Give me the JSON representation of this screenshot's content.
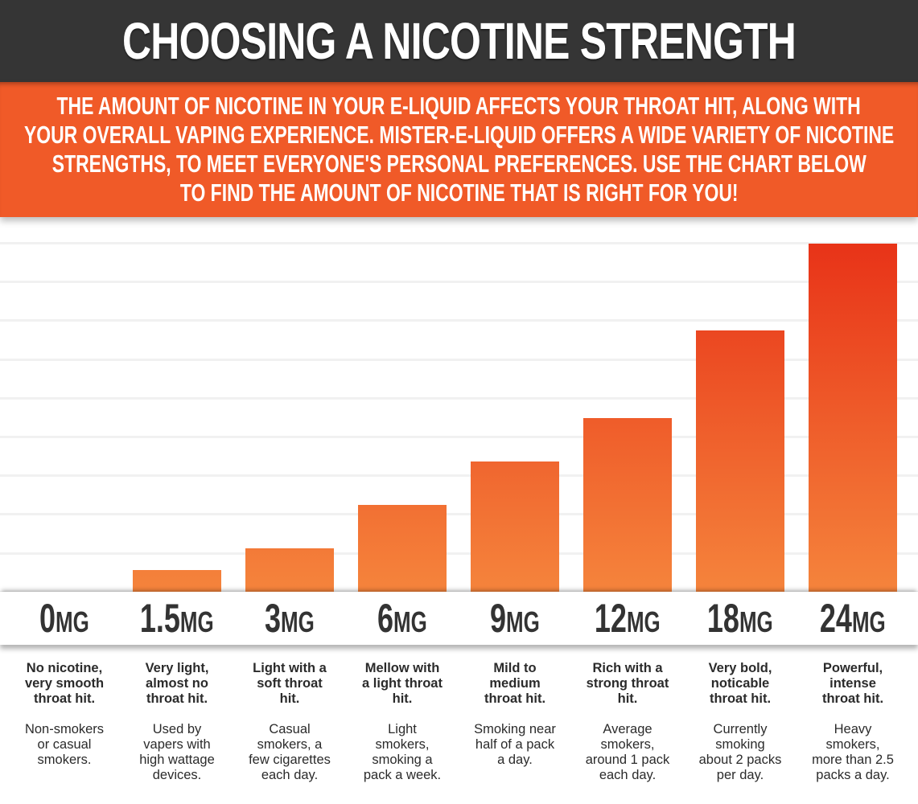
{
  "header": {
    "title": "CHOOSING A NICOTINE STRENGTH"
  },
  "banner": {
    "lines": [
      "THE AMOUNT OF NICOTINE IN YOUR E-LIQUID AFFECTS YOUR THROAT HIT, ALONG  WITH",
      "YOUR OVERALL VAPING EXPERIENCE. MISTER-E-LIQUID OFFERS A WIDE VARIETY OF NICOTINE",
      "STRENGTHS, TO MEET EVERYONE'S PERSONAL PREFERENCES. USE THE CHART BELOW",
      "TO FIND THE AMOUNT OF NICOTINE THAT IS RIGHT FOR YOU!"
    ]
  },
  "colors": {
    "header_bg": "#353535",
    "banner_bg": "#f05a28",
    "bar_bottom": "#f5843c",
    "bar_top_max": "#e83318",
    "label_text": "#333333"
  },
  "chart_data": {
    "type": "bar",
    "title": "CHOOSING A NICOTINE STRENGTH",
    "xlabel": "",
    "ylabel": "",
    "categories": [
      "0MG",
      "1.5MG",
      "3MG",
      "6MG",
      "9MG",
      "12MG",
      "18MG",
      "24MG"
    ],
    "values": [
      0,
      1.5,
      3,
      6,
      9,
      12,
      18,
      24
    ],
    "ylim": [
      0,
      24
    ],
    "grid": true,
    "legend": "none",
    "y_axis_ticks_visible": false
  },
  "columns": [
    {
      "num": "0",
      "unit": "MG",
      "headline": [
        "No nicotine,",
        "very smooth",
        "throat hit."
      ],
      "detail": [
        "Non-smokers",
        "or casual",
        "smokers."
      ]
    },
    {
      "num": "1.5",
      "unit": "MG",
      "headline": [
        "Very light,",
        "almost no",
        "throat hit."
      ],
      "detail": [
        "Used by",
        "vapers with",
        "high wattage",
        "devices."
      ]
    },
    {
      "num": "3",
      "unit": "MG",
      "headline": [
        "Light with a",
        "soft throat",
        "hit."
      ],
      "detail": [
        "Casual",
        "smokers, a",
        "few cigarettes",
        "each day."
      ]
    },
    {
      "num": "6",
      "unit": "MG",
      "headline": [
        "Mellow with",
        "a light throat",
        "hit."
      ],
      "detail": [
        "Light",
        "smokers,",
        "smoking a",
        "pack a week."
      ]
    },
    {
      "num": "9",
      "unit": "MG",
      "headline": [
        "Mild to",
        "medium",
        "throat hit."
      ],
      "detail": [
        "Smoking near",
        "half of a pack",
        "a day."
      ]
    },
    {
      "num": "12",
      "unit": "MG",
      "headline": [
        "Rich with a",
        "strong throat",
        "hit."
      ],
      "detail": [
        "Average",
        "smokers,",
        "around 1 pack",
        "each day."
      ]
    },
    {
      "num": "18",
      "unit": "MG",
      "headline": [
        "Very bold,",
        "noticable",
        "throat hit."
      ],
      "detail": [
        "Currently",
        "smoking",
        "about 2 packs",
        "per day."
      ]
    },
    {
      "num": "24",
      "unit": "MG",
      "headline": [
        "Powerful,",
        "intense",
        "throat hit."
      ],
      "detail": [
        "Heavy",
        "smokers,",
        "more than 2.5",
        "packs a day."
      ]
    }
  ]
}
